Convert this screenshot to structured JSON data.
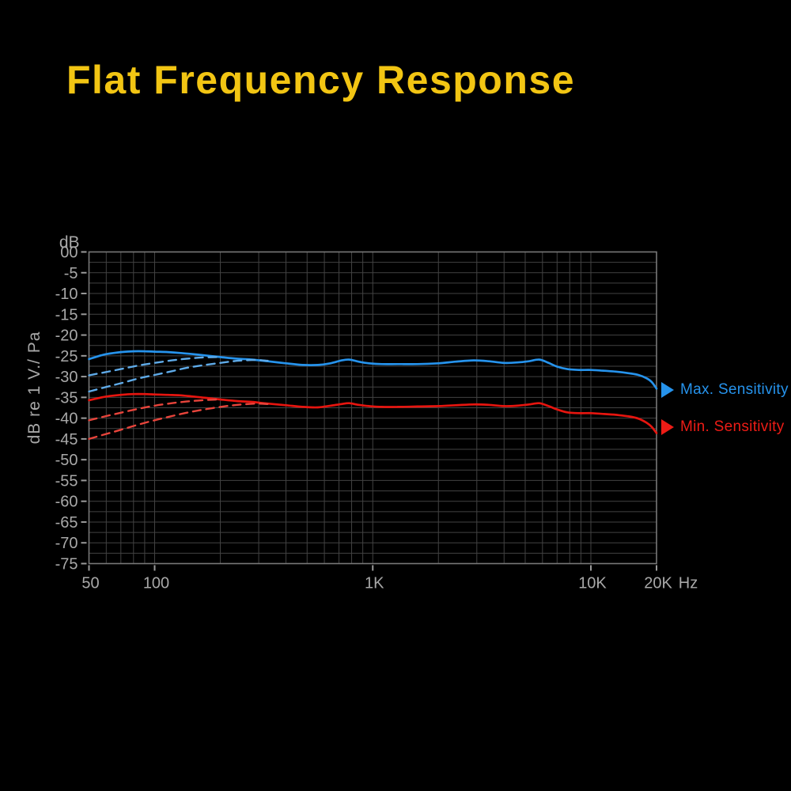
{
  "title": {
    "text": "Flat Frequency Response",
    "color": "#F2C513"
  },
  "chart_data": {
    "type": "line",
    "title": "Flat Frequency Response",
    "grid": true,
    "grid_color": "#424242",
    "border_color": "#787878",
    "label_color": "#A8A8A8",
    "tick_color": "#9A9A9A",
    "x_axis": {
      "scale": "log",
      "min": 50,
      "max": 20000,
      "unit_label": "Hz",
      "ticks": [
        {
          "value": 50,
          "label": "50"
        },
        {
          "value": 100,
          "label": "100"
        },
        {
          "value": 1000,
          "label": "1K"
        },
        {
          "value": 10000,
          "label": "10K"
        },
        {
          "value": 20000,
          "label": "20K"
        }
      ],
      "gridlines": [
        50,
        60,
        70,
        80,
        90,
        100,
        200,
        300,
        400,
        500,
        600,
        700,
        800,
        900,
        1000,
        2000,
        3000,
        4000,
        5000,
        6000,
        7000,
        8000,
        9000,
        10000,
        20000
      ]
    },
    "y_axis": {
      "min": -75,
      "max": 0,
      "unit_label": "dB",
      "axis_title": "dB re 1 V./ Pa",
      "tick_step": 5,
      "gridline_step": 2.5,
      "ticks": [
        {
          "value": 0,
          "label": "00"
        },
        {
          "value": -5,
          "label": "-5"
        },
        {
          "value": -10,
          "label": "-10"
        },
        {
          "value": -15,
          "label": "-15"
        },
        {
          "value": -20,
          "label": "-20"
        },
        {
          "value": -25,
          "label": "-25"
        },
        {
          "value": -30,
          "label": "-30"
        },
        {
          "value": -35,
          "label": "-35"
        },
        {
          "value": -40,
          "label": "-40"
        },
        {
          "value": -45,
          "label": "-45"
        },
        {
          "value": -50,
          "label": "-50"
        },
        {
          "value": -55,
          "label": "-55"
        },
        {
          "value": -60,
          "label": "-60"
        },
        {
          "value": -65,
          "label": "-65"
        },
        {
          "value": -70,
          "label": "-70"
        },
        {
          "value": -75,
          "label": "-75"
        }
      ]
    },
    "series": [
      {
        "name": "max-sensitivity",
        "legend": "Max. Sensitivity",
        "color": "#2693EC",
        "style": "solid",
        "points": [
          [
            50,
            -25.8
          ],
          [
            55,
            -25.1
          ],
          [
            60,
            -24.6
          ],
          [
            70,
            -24.1
          ],
          [
            80,
            -23.9
          ],
          [
            90,
            -23.9
          ],
          [
            100,
            -24.0
          ],
          [
            115,
            -24.1
          ],
          [
            130,
            -24.3
          ],
          [
            150,
            -24.6
          ],
          [
            170,
            -24.9
          ],
          [
            200,
            -25.3
          ],
          [
            240,
            -25.7
          ],
          [
            280,
            -25.9
          ],
          [
            330,
            -26.3
          ],
          [
            400,
            -26.8
          ],
          [
            480,
            -27.2
          ],
          [
            560,
            -27.2
          ],
          [
            640,
            -26.8
          ],
          [
            720,
            -26.1
          ],
          [
            780,
            -25.9
          ],
          [
            860,
            -26.4
          ],
          [
            960,
            -26.8
          ],
          [
            1100,
            -27.0
          ],
          [
            1300,
            -27.0
          ],
          [
            1600,
            -27.0
          ],
          [
            2000,
            -26.8
          ],
          [
            2400,
            -26.4
          ],
          [
            2900,
            -26.1
          ],
          [
            3400,
            -26.3
          ],
          [
            4000,
            -26.7
          ],
          [
            4600,
            -26.6
          ],
          [
            5200,
            -26.3
          ],
          [
            5800,
            -25.9
          ],
          [
            6400,
            -26.7
          ],
          [
            7000,
            -27.6
          ],
          [
            7800,
            -28.2
          ],
          [
            8800,
            -28.4
          ],
          [
            10000,
            -28.4
          ],
          [
            11500,
            -28.6
          ],
          [
            13000,
            -28.8
          ],
          [
            15000,
            -29.2
          ],
          [
            16500,
            -29.6
          ],
          [
            18000,
            -30.4
          ],
          [
            19000,
            -31.3
          ],
          [
            20000,
            -32.9
          ]
        ]
      },
      {
        "name": "min-sensitivity",
        "legend": "Min. Sensitivity",
        "color": "#E6150F",
        "style": "solid",
        "points": [
          [
            50,
            -35.7
          ],
          [
            55,
            -35.2
          ],
          [
            60,
            -34.8
          ],
          [
            70,
            -34.4
          ],
          [
            80,
            -34.2
          ],
          [
            90,
            -34.2
          ],
          [
            100,
            -34.3
          ],
          [
            115,
            -34.4
          ],
          [
            130,
            -34.5
          ],
          [
            150,
            -34.8
          ],
          [
            170,
            -35.1
          ],
          [
            200,
            -35.5
          ],
          [
            240,
            -35.9
          ],
          [
            280,
            -36.1
          ],
          [
            330,
            -36.5
          ],
          [
            400,
            -36.9
          ],
          [
            480,
            -37.3
          ],
          [
            560,
            -37.4
          ],
          [
            640,
            -37.0
          ],
          [
            720,
            -36.6
          ],
          [
            780,
            -36.4
          ],
          [
            860,
            -36.8
          ],
          [
            960,
            -37.1
          ],
          [
            1100,
            -37.3
          ],
          [
            1300,
            -37.3
          ],
          [
            1600,
            -37.2
          ],
          [
            2000,
            -37.1
          ],
          [
            2400,
            -36.9
          ],
          [
            2900,
            -36.7
          ],
          [
            3400,
            -36.8
          ],
          [
            4000,
            -37.1
          ],
          [
            4600,
            -37.0
          ],
          [
            5200,
            -36.7
          ],
          [
            5800,
            -36.4
          ],
          [
            6400,
            -37.1
          ],
          [
            7000,
            -37.9
          ],
          [
            7800,
            -38.6
          ],
          [
            8800,
            -38.8
          ],
          [
            10000,
            -38.8
          ],
          [
            11500,
            -39.0
          ],
          [
            13000,
            -39.2
          ],
          [
            15000,
            -39.6
          ],
          [
            16500,
            -40.1
          ],
          [
            18000,
            -41.1
          ],
          [
            19000,
            -42.1
          ],
          [
            20000,
            -43.6
          ]
        ]
      },
      {
        "name": "max-sensitivity-rolloff-a",
        "color": "#5FABE9",
        "style": "dashed",
        "points": [
          [
            50,
            -29.7
          ],
          [
            60,
            -28.9
          ],
          [
            70,
            -28.2
          ],
          [
            85,
            -27.3
          ],
          [
            100,
            -26.7
          ],
          [
            120,
            -26.1
          ],
          [
            140,
            -25.7
          ],
          [
            165,
            -25.4
          ],
          [
            195,
            -25.3
          ]
        ]
      },
      {
        "name": "max-sensitivity-rolloff-b",
        "color": "#5FABE9",
        "style": "dashed",
        "points": [
          [
            50,
            -33.6
          ],
          [
            60,
            -32.5
          ],
          [
            70,
            -31.6
          ],
          [
            85,
            -30.4
          ],
          [
            100,
            -29.6
          ],
          [
            120,
            -28.7
          ],
          [
            140,
            -27.9
          ],
          [
            165,
            -27.3
          ],
          [
            200,
            -26.7
          ],
          [
            240,
            -26.2
          ],
          [
            290,
            -26.0
          ],
          [
            330,
            -26.2
          ]
        ]
      },
      {
        "name": "min-sensitivity-rolloff-a",
        "color": "#E8443B",
        "style": "dashed",
        "points": [
          [
            50,
            -40.5
          ],
          [
            60,
            -39.5
          ],
          [
            70,
            -38.7
          ],
          [
            85,
            -37.7
          ],
          [
            100,
            -37.0
          ],
          [
            120,
            -36.4
          ],
          [
            140,
            -36.0
          ],
          [
            165,
            -35.7
          ],
          [
            195,
            -35.5
          ]
        ]
      },
      {
        "name": "min-sensitivity-rolloff-b",
        "color": "#E8443B",
        "style": "dashed",
        "points": [
          [
            50,
            -45.0
          ],
          [
            60,
            -43.8
          ],
          [
            70,
            -42.8
          ],
          [
            85,
            -41.5
          ],
          [
            100,
            -40.5
          ],
          [
            120,
            -39.5
          ],
          [
            140,
            -38.7
          ],
          [
            165,
            -38.0
          ],
          [
            200,
            -37.3
          ],
          [
            240,
            -36.8
          ],
          [
            290,
            -36.5
          ],
          [
            330,
            -36.6
          ]
        ]
      }
    ],
    "legend": [
      {
        "label": "Max. Sensitivity",
        "color": "#2693EC",
        "marker": "right-triangle"
      },
      {
        "label": "Min. Sensitivity",
        "color": "#ED1C16",
        "marker": "right-triangle"
      }
    ],
    "legend_position": "right"
  }
}
